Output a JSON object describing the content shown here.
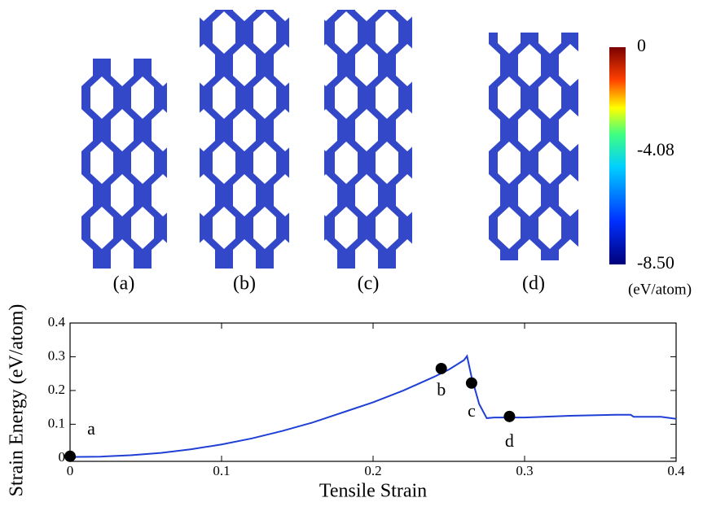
{
  "panels": {
    "labels": [
      "(a)",
      "(b)",
      "(c)",
      "(d)"
    ]
  },
  "colorbar": {
    "lim": [
      -8.5,
      0
    ],
    "ticks": [
      0,
      -4.08,
      {
        "value": -8.5,
        "label": "-8.50"
      }
    ],
    "label": "(eV/atom)"
  },
  "chart_data": {
    "type": "line",
    "xlabel": "Tensile Strain",
    "ylabel": "Strain Energy (eV/atom)",
    "xlim": [
      0,
      0.4
    ],
    "ylim": [
      -0.01,
      0.4
    ],
    "xticks": [
      0,
      0.1,
      0.2,
      0.3,
      0.4
    ],
    "yticks": [
      0,
      0.1,
      0.2,
      0.3,
      0.4
    ],
    "series": [
      {
        "style": "line",
        "color": "#1f3fd6",
        "x": [
          0,
          0.02,
          0.04,
          0.06,
          0.08,
          0.1,
          0.12,
          0.14,
          0.16,
          0.18,
          0.2,
          0.22,
          0.24,
          0.25,
          0.26,
          0.262,
          0.265,
          0.27,
          0.275,
          0.28,
          0.3,
          0.33,
          0.36,
          0.37,
          0.372,
          0.39,
          0.4
        ],
        "values": [
          0.003,
          0.004,
          0.008,
          0.015,
          0.026,
          0.04,
          0.058,
          0.08,
          0.105,
          0.135,
          0.165,
          0.2,
          0.24,
          0.262,
          0.29,
          0.302,
          0.24,
          0.16,
          0.118,
          0.12,
          0.12,
          0.125,
          0.128,
          0.128,
          0.122,
          0.122,
          0.116
        ]
      },
      {
        "style": "points",
        "color": "#000000",
        "labels": [
          "a",
          "b",
          "c",
          "d"
        ],
        "x": [
          0,
          0.245,
          0.265,
          0.29
        ],
        "values": [
          0.005,
          0.265,
          0.222,
          0.123
        ]
      }
    ]
  }
}
